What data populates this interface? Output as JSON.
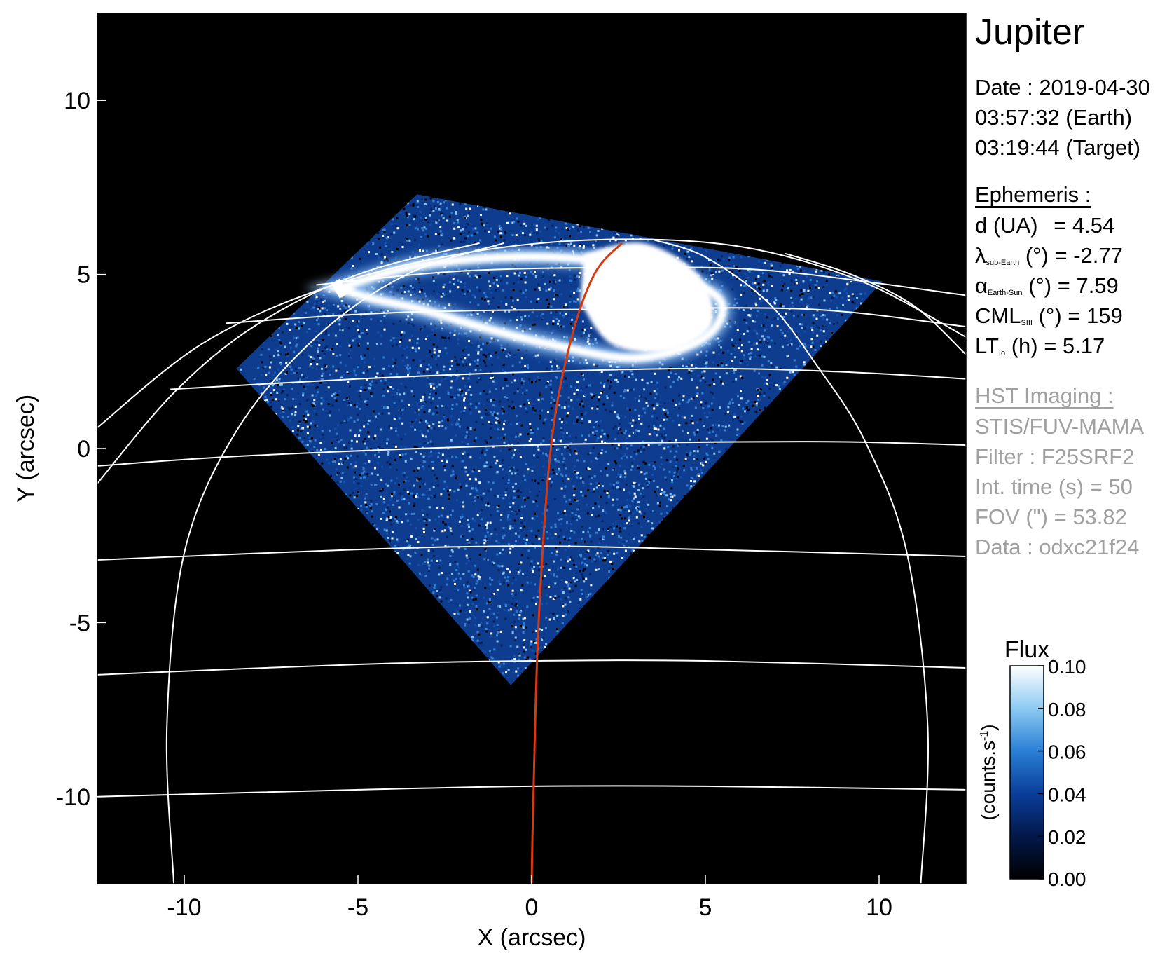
{
  "title": "Jupiter",
  "date": {
    "line1": "Date : 2019-04-30",
    "line2": "03:57:32 (Earth)",
    "line3": "03:19:44 (Target)"
  },
  "ephemeris": {
    "header": "Ephemeris :",
    "d_label": "d (UA)",
    "d_value": "= 4.54",
    "lat_symbol": "λ",
    "lat_sub": "sub-Earth",
    "lat_value": "(°) = -2.77",
    "alpha_symbol": "α",
    "alpha_sub": "Earth-Sun",
    "alpha_value": "(°) = 7.59",
    "cml_symbol": "CML",
    "cml_sub": "SIII",
    "cml_value": "(°) = 159",
    "lt_symbol": "LT",
    "lt_sub": "Io",
    "lt_value": "(h) = 5.17"
  },
  "hst": {
    "header": "HST Imaging :",
    "instrument": "STIS/FUV-MAMA",
    "filter": "Filter : F25SRF2",
    "int_time": "Int. time (s) = 50",
    "fov": "FOV (\") = 53.82",
    "data": "Data : odxc21f24"
  },
  "colors": {
    "background": "#000000",
    "grid": "#ffffff",
    "meridian": "#d83a10",
    "aurora": "#ffffff",
    "disk_noise": "#3f7fd0"
  },
  "chart_data": {
    "type": "heatmap",
    "xlabel": "X (arcsec)",
    "ylabel": "Y (arcsec)",
    "xlim": [
      -12.5,
      12.5
    ],
    "ylim": [
      -12.5,
      12.5
    ],
    "xticks": [
      -10,
      -5,
      0,
      5,
      10
    ],
    "yticks": [
      -10,
      -5,
      0,
      5,
      10
    ],
    "xtick_labels": [
      "-10",
      "-5",
      "0",
      "5",
      "10"
    ],
    "ytick_labels": [
      "-10",
      "-5",
      "0",
      "5",
      "10"
    ],
    "colorbar": {
      "title": "Flux",
      "label": "(counts.s",
      "label_sup": "-1",
      "label_end": ")",
      "range": [
        0.0,
        0.1
      ],
      "ticks": [
        0.0,
        0.02,
        0.04,
        0.06,
        0.08,
        0.1
      ],
      "tick_labels": [
        "0.00",
        "0.02",
        "0.04",
        "0.06",
        "0.08",
        "0.10"
      ],
      "colors": [
        "#000000",
        "#03184a",
        "#0a3e9a",
        "#2a7fd6",
        "#8ccaf2",
        "#ffffff"
      ]
    },
    "field_of_view": [
      [
        -8.5,
        2.3
      ],
      [
        -3.3,
        7.3
      ],
      [
        10.1,
        4.8
      ],
      [
        -0.6,
        -6.8
      ]
    ],
    "meridian": [
      [
        0.0,
        -12.5
      ],
      [
        0.05,
        -10
      ],
      [
        0.2,
        -5
      ],
      [
        0.55,
        0
      ],
      [
        1.1,
        3
      ],
      [
        1.8,
        5
      ],
      [
        2.6,
        5.9
      ]
    ],
    "grid_latitudes": [
      [
        [
          -12.5,
          -0.5
        ],
        [
          -8,
          -0.2
        ],
        [
          0,
          0.1
        ],
        [
          8,
          0.2
        ],
        [
          12.5,
          0.1
        ]
      ],
      [
        [
          -12.5,
          -3.2
        ],
        [
          -5,
          -2.9
        ],
        [
          0,
          -2.8
        ],
        [
          5,
          -2.9
        ],
        [
          12.5,
          -3.1
        ]
      ],
      [
        [
          -12.5,
          -6.5
        ],
        [
          -5,
          -6.2
        ],
        [
          0,
          -6.1
        ],
        [
          5,
          -6.1
        ],
        [
          12.5,
          -6.3
        ]
      ],
      [
        [
          -12.5,
          -10.0
        ],
        [
          -5,
          -9.8
        ],
        [
          0,
          -9.7
        ],
        [
          5,
          -9.7
        ],
        [
          12.5,
          -9.8
        ]
      ],
      [
        [
          -10.4,
          1.7
        ],
        [
          -5,
          2.0
        ],
        [
          0,
          2.2
        ],
        [
          5,
          2.3
        ],
        [
          9,
          2.2
        ],
        [
          12.5,
          2.0
        ]
      ],
      [
        [
          -8.8,
          3.6
        ],
        [
          -4,
          3.9
        ],
        [
          2,
          4.0
        ],
        [
          8,
          4.0
        ],
        [
          12.5,
          3.5
        ]
      ],
      [
        [
          -6.2,
          4.7
        ],
        [
          -2,
          5.1
        ],
        [
          3,
          5.2
        ],
        [
          7,
          5.1
        ],
        [
          12.5,
          4.4
        ]
      ]
    ],
    "grid_meridians": [
      [
        [
          -12.5,
          0.6
        ],
        [
          -9.5,
          3.0
        ],
        [
          -6,
          4.6
        ],
        [
          -2,
          5.6
        ],
        [
          2,
          6.0
        ],
        [
          6,
          5.8
        ],
        [
          9.5,
          4.8
        ],
        [
          12.5,
          3.2
        ]
      ],
      [
        [
          -10.3,
          -12.5
        ],
        [
          -10.5,
          -8
        ],
        [
          -10.0,
          -3
        ],
        [
          -8.5,
          0.5
        ],
        [
          -6.2,
          3.2
        ],
        [
          -3.6,
          5.0
        ],
        [
          -0.8,
          5.9
        ]
      ],
      [
        [
          -12.5,
          -1.0
        ],
        [
          -10.3,
          1.6
        ],
        [
          -8.0,
          3.5
        ],
        [
          -5.0,
          5.0
        ],
        [
          -1.5,
          5.9
        ]
      ],
      [
        [
          11.2,
          -12.5
        ],
        [
          11.4,
          -8
        ],
        [
          10.8,
          -3
        ],
        [
          9.6,
          0.2
        ],
        [
          8.2,
          2.4
        ],
        [
          6.8,
          4.2
        ],
        [
          5.0,
          5.5
        ],
        [
          3.5,
          6.0
        ]
      ],
      [
        [
          12.5,
          2.7
        ],
        [
          11.0,
          4.1
        ],
        [
          9.2,
          5.0
        ],
        [
          7.3,
          5.6
        ]
      ]
    ],
    "aurora_oval": [
      [
        -5.6,
        4.6
      ],
      [
        -3.0,
        5.3
      ],
      [
        0.5,
        5.5
      ],
      [
        3.5,
        5.1
      ],
      [
        5.4,
        4.3
      ],
      [
        5.0,
        3.2
      ],
      [
        3.0,
        2.6
      ],
      [
        0.5,
        3.0
      ],
      [
        -1.5,
        3.5
      ],
      [
        -3.2,
        4.0
      ],
      [
        -4.6,
        4.3
      ]
    ],
    "aurora_core": [
      [
        1.5,
        5.6
      ],
      [
        3.2,
        5.9
      ],
      [
        4.8,
        5.0
      ],
      [
        5.2,
        3.6
      ],
      [
        4.0,
        2.8
      ],
      [
        2.3,
        3.0
      ],
      [
        1.4,
        4.2
      ]
    ]
  }
}
